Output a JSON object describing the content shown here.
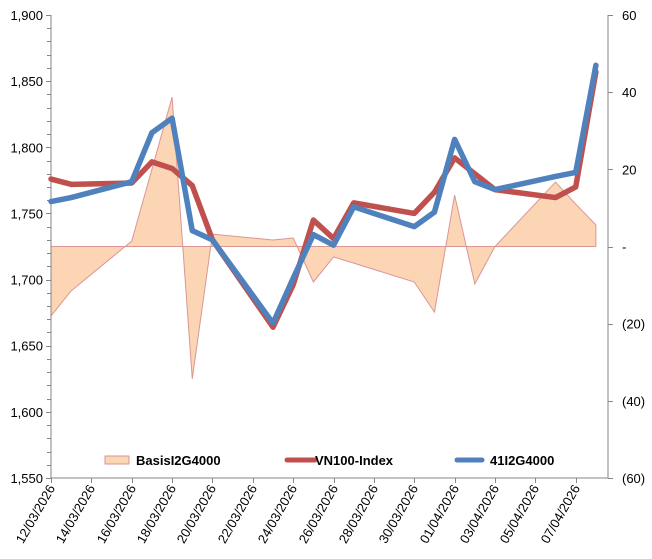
{
  "chart_data": {
    "type": "line",
    "title": "",
    "xlabel": "",
    "ylabel_left": "",
    "ylabel_right": "",
    "x_axis": {
      "type": "date",
      "start": "12/03/2026",
      "end_days": 27.6,
      "tick_labels": [
        "12/03/2026",
        "14/03/2026",
        "16/03/2026",
        "18/03/2026",
        "20/03/2026",
        "22/03/2026",
        "24/03/2026",
        "26/03/2026",
        "28/03/2026",
        "30/03/2026",
        "01/04/2026",
        "03/04/2026",
        "05/04/2026",
        "07/04/2026"
      ],
      "tick_interval_days": 2
    },
    "y_left": {
      "range": [
        1550,
        1900
      ],
      "major_step": 50,
      "minor_step": 10,
      "tick_labels": [
        "1,550",
        "1,600",
        "1,650",
        "1,700",
        "1,750",
        "1,800",
        "1,850",
        "1,900"
      ]
    },
    "y_right": {
      "range": [
        -60,
        60
      ],
      "major_step": 20,
      "tick_labels": [
        "(60)",
        "(40)",
        "(20)",
        "-",
        "20",
        "40",
        "60"
      ],
      "tick_values": [
        -60,
        -40,
        -20,
        0,
        20,
        40,
        60
      ]
    },
    "grid": false,
    "legend_position": "bottom-inside",
    "x": [
      "12/03/2026",
      "13/03/2026",
      "16/03/2026",
      "17/03/2026",
      "18/03/2026",
      "19/03/2026",
      "20/03/2026",
      "23/03/2026",
      "24/03/2026",
      "25/03/2026",
      "26/03/2026",
      "27/03/2026",
      "30/03/2026",
      "31/03/2026",
      "01/04/2026",
      "02/04/2026",
      "03/04/2026",
      "06/04/2026",
      "07/04/2026",
      "08/04/2026"
    ],
    "series": [
      {
        "name": "BasisI2G4000",
        "kind": "area",
        "axis": "right",
        "color": "#FCD5B5",
        "border_color": "#D99694",
        "values": [
          -18,
          -11.5,
          1.4,
          20,
          38.7,
          -34.3,
          3.2,
          1.7,
          2.2,
          -9.2,
          -2.7,
          -4.3,
          -9.2,
          -17,
          13.3,
          -9.7,
          0,
          16.7,
          11,
          5.6
        ]
      },
      {
        "name": "VN100-Index",
        "kind": "line",
        "axis": "left",
        "color": "#C0504D",
        "values": [
          1776,
          1772,
          1773,
          1789,
          1784,
          1771,
          1730,
          1664,
          1696,
          1745,
          1731,
          1758,
          1750,
          1766,
          1792,
          1780,
          1768,
          1762,
          1770,
          1857
        ]
      },
      {
        "name": "41I2G4000",
        "kind": "line",
        "axis": "left",
        "color": "#4F81BD",
        "values": [
          1759,
          1762,
          1774,
          1811,
          1822,
          1737,
          1730,
          1667,
          1701,
          1734,
          1726,
          1755,
          1740,
          1751,
          1806,
          1774,
          1768,
          1778,
          1781,
          1862
        ]
      }
    ]
  }
}
